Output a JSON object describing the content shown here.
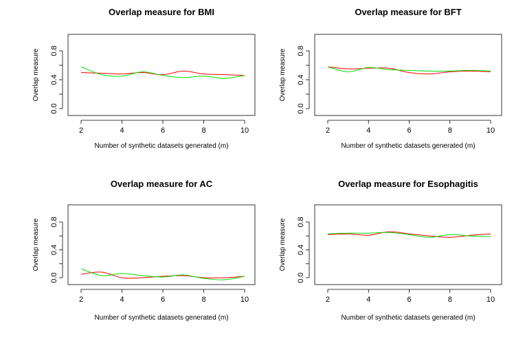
{
  "chart_data": [
    {
      "type": "line",
      "title": "Overlap measure for BMI",
      "xlabel": "Number of synthetic datasets generated (m)",
      "ylabel": "Overlap measure",
      "xticks": [
        "2",
        "4",
        "6",
        "8",
        "10"
      ],
      "yticks": [
        "0.0",
        "0.4",
        "0.8"
      ],
      "xlim": [
        2,
        10
      ],
      "ylim": [
        0,
        1
      ],
      "grid": false,
      "x": [
        2,
        3,
        4,
        5,
        6,
        7,
        8,
        9,
        10
      ],
      "series": [
        {
          "color": "#ff0000",
          "values": [
            0.5,
            0.49,
            0.48,
            0.5,
            0.47,
            0.52,
            0.48,
            0.47,
            0.46
          ]
        },
        {
          "color": "#00dd00",
          "values": [
            0.58,
            0.47,
            0.45,
            0.51,
            0.46,
            0.43,
            0.45,
            0.42,
            0.46
          ]
        }
      ]
    },
    {
      "type": "line",
      "title": "Overlap measure for BFT",
      "xlabel": "Number of synthetic datasets generated (m)",
      "ylabel": "Overlap measure",
      "xticks": [
        "2",
        "4",
        "6",
        "8",
        "10"
      ],
      "yticks": [
        "0.0",
        "0.4",
        "0.8"
      ],
      "xlim": [
        2,
        10
      ],
      "ylim": [
        0,
        1
      ],
      "grid": false,
      "x": [
        2,
        3,
        4,
        5,
        6,
        7,
        8,
        9,
        10
      ],
      "series": [
        {
          "color": "#ff0000",
          "values": [
            0.58,
            0.55,
            0.56,
            0.56,
            0.5,
            0.48,
            0.51,
            0.52,
            0.51
          ]
        },
        {
          "color": "#00dd00",
          "values": [
            0.58,
            0.51,
            0.57,
            0.54,
            0.53,
            0.52,
            0.52,
            0.53,
            0.52
          ]
        }
      ]
    },
    {
      "type": "line",
      "title": "Overlap measure for AC",
      "xlabel": "Number of synthetic datasets generated (m)",
      "ylabel": "Overlap measure",
      "xticks": [
        "2",
        "4",
        "6",
        "8",
        "10"
      ],
      "yticks": [
        "0.0",
        "0.4",
        "0.8"
      ],
      "xlim": [
        2,
        10
      ],
      "ylim": [
        0,
        1
      ],
      "grid": false,
      "x": [
        2,
        3,
        4,
        5,
        6,
        7,
        8,
        9,
        10
      ],
      "series": [
        {
          "color": "#ff0000",
          "values": [
            0.05,
            0.08,
            0.0,
            0.0,
            0.02,
            0.03,
            0.0,
            0.0,
            0.02
          ]
        },
        {
          "color": "#00dd00",
          "values": [
            0.13,
            0.03,
            0.06,
            0.03,
            0.01,
            0.04,
            -0.01,
            -0.03,
            0.02
          ]
        }
      ]
    },
    {
      "type": "line",
      "title": "Overlap measure for Esophagitis",
      "xlabel": "Number of synthetic datasets generated (m)",
      "ylabel": "Overlap measure",
      "xticks": [
        "2",
        "4",
        "6",
        "8",
        "10"
      ],
      "yticks": [
        "0.0",
        "0.4",
        "0.8"
      ],
      "xlim": [
        2,
        10
      ],
      "ylim": [
        0,
        1
      ],
      "grid": false,
      "x": [
        2,
        3,
        4,
        5,
        6,
        7,
        8,
        9,
        10
      ],
      "series": [
        {
          "color": "#ff0000",
          "values": [
            0.62,
            0.63,
            0.61,
            0.66,
            0.63,
            0.6,
            0.58,
            0.61,
            0.63
          ]
        },
        {
          "color": "#00dd00",
          "values": [
            0.63,
            0.64,
            0.64,
            0.65,
            0.62,
            0.58,
            0.62,
            0.6,
            0.59
          ]
        }
      ]
    }
  ]
}
